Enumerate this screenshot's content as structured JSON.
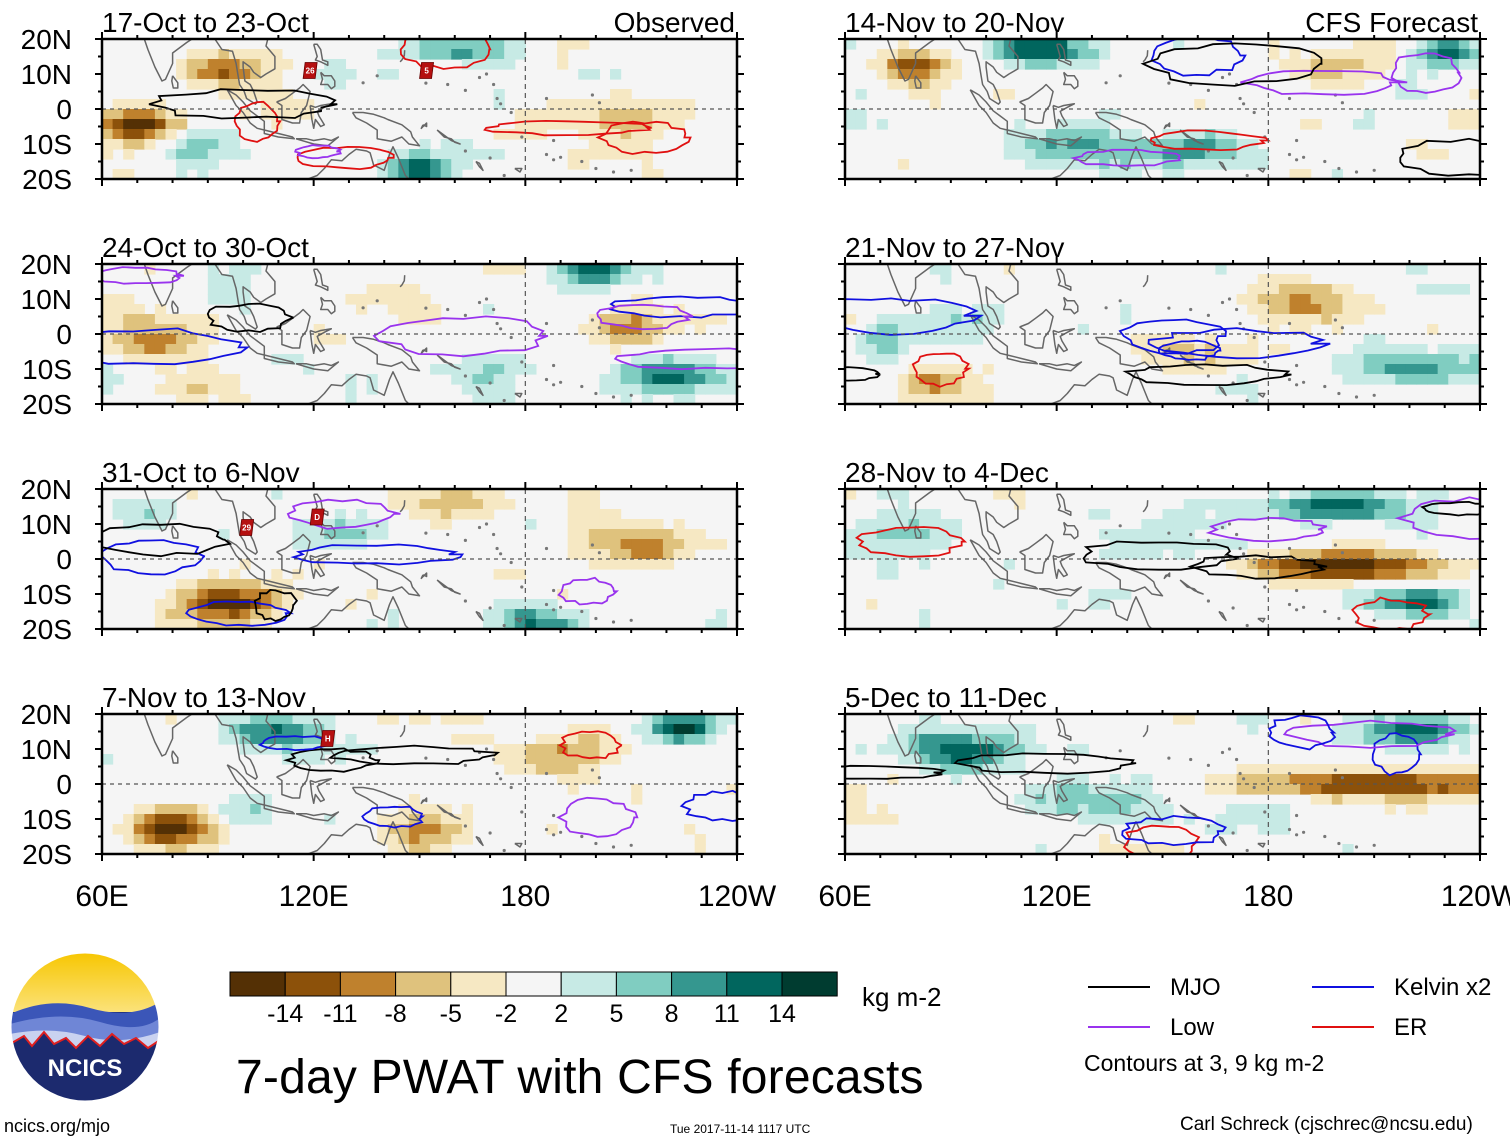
{
  "chart_data": {
    "type": "heatmap",
    "title": "7-day PWAT with CFS forecasts",
    "units": "kg m-2",
    "left_column_header": "Observed",
    "right_column_header": "CFS Forecast",
    "x_tick_labels": [
      "60E",
      "120E",
      "180",
      "120W"
    ],
    "y_tick_labels": [
      "20N",
      "10N",
      "0",
      "10S",
      "20S"
    ],
    "x_range_deg_east": [
      60,
      240
    ],
    "y_range_deg": [
      -20,
      20
    ],
    "panels": [
      {
        "period": "17-Oct to 23-Oct",
        "column": "left",
        "row": 0,
        "storm_markers": [
          {
            "label": "26",
            "lon": 119,
            "lat": 11
          },
          {
            "label": "5",
            "lon": 152,
            "lat": 11
          }
        ]
      },
      {
        "period": "24-Oct to 30-Oct",
        "column": "left",
        "row": 1,
        "storm_markers": []
      },
      {
        "period": "31-Oct to 6-Nov",
        "column": "left",
        "row": 2,
        "storm_markers": [
          {
            "label": "29",
            "lon": 101,
            "lat": 9
          },
          {
            "label": "D",
            "lon": 121,
            "lat": 12
          }
        ]
      },
      {
        "period": "7-Nov to 13-Nov",
        "column": "left",
        "row": 3,
        "storm_markers": [
          {
            "label": "H",
            "lon": 124,
            "lat": 13
          }
        ]
      },
      {
        "period": "14-Nov to 20-Nov",
        "column": "right",
        "row": 0,
        "storm_markers": []
      },
      {
        "period": "21-Nov to 27-Nov",
        "column": "right",
        "row": 1,
        "storm_markers": []
      },
      {
        "period": "28-Nov to 4-Dec",
        "column": "right",
        "row": 2,
        "storm_markers": []
      },
      {
        "period": "5-Dec to 11-Dec",
        "column": "right",
        "row": 3,
        "storm_markers": []
      }
    ],
    "colorbar": {
      "levels": [
        "-14",
        "-11",
        "-8",
        "-5",
        "-2",
        "2",
        "5",
        "8",
        "11",
        "14"
      ],
      "colors": [
        "#543005",
        "#8c510a",
        "#bf812d",
        "#dfc27d",
        "#f6e8c3",
        "#f5f5f5",
        "#c7eae5",
        "#80cdc1",
        "#35978f",
        "#01665e",
        "#003c30"
      ]
    },
    "legend": [
      {
        "label": "MJO",
        "color": "#000000"
      },
      {
        "label": "Kelvin x2",
        "color": "#1010e0"
      },
      {
        "label": "Low",
        "color": "#9933ee"
      },
      {
        "label": "ER",
        "color": "#e01010"
      }
    ],
    "contour_note": "Contours at 3, 9 kg m-2"
  },
  "logo": {
    "text": "NCICS"
  },
  "footer": {
    "url": "ncics.org/mjo",
    "timestamp": "Tue 2017-11-14 1117 UTC",
    "credit": "Carl Schreck (cjschrec@ncsu.edu)"
  }
}
